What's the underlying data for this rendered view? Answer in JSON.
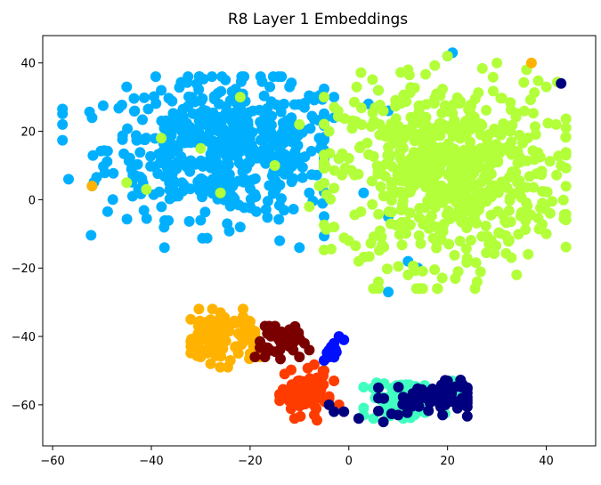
{
  "chart_data": {
    "type": "scatter",
    "title": "R8 Layer 1 Embeddings",
    "xlabel": "",
    "ylabel": "",
    "xlim": [
      -62,
      50
    ],
    "ylim": [
      -72,
      48
    ],
    "xticks": [
      -60,
      -40,
      -20,
      0,
      20,
      40
    ],
    "yticks": [
      -60,
      -40,
      -20,
      0,
      20,
      40
    ],
    "grid": false,
    "legend": "none",
    "series": [
      {
        "color": "#00b0ff",
        "cluster": {
          "cx": -25,
          "cy": 15,
          "sx": 12,
          "sy": 10,
          "n": 520,
          "xlim": [
            -58,
            -5
          ],
          "ylim": [
            -14,
            36
          ]
        },
        "points": [
          [
            -58,
            22
          ],
          [
            -52,
            24
          ],
          [
            -45,
            33
          ],
          [
            -38,
            32
          ],
          [
            -25,
            35
          ],
          [
            -16,
            33
          ],
          [
            -12,
            33
          ],
          [
            -9,
            27
          ],
          [
            -6,
            18
          ],
          [
            -5,
            10
          ],
          [
            -14,
            -12
          ],
          [
            -22,
            -8
          ],
          [
            -30,
            -6
          ],
          [
            -10,
            -14
          ],
          [
            -20,
            -2
          ],
          [
            -3,
            30
          ],
          [
            4,
            28
          ],
          [
            8,
            26
          ],
          [
            -2,
            12
          ],
          [
            3,
            2
          ],
          [
            8,
            -5
          ],
          [
            12,
            -18
          ],
          [
            14,
            -20
          ],
          [
            20,
            42
          ],
          [
            21,
            43
          ],
          [
            8,
            -27
          ],
          [
            -52,
            4
          ],
          [
            -8,
            2
          ],
          [
            -3,
            24
          ],
          [
            1,
            22
          ],
          [
            -12,
            10
          ],
          [
            6,
            32
          ]
        ]
      },
      {
        "color": "#b2ff3a",
        "cluster": {
          "cx": 20,
          "cy": 8,
          "sx": 11,
          "sy": 13,
          "n": 650,
          "xlim": [
            -5,
            44
          ],
          "ylim": [
            -26,
            41
          ]
        },
        "points": [
          [
            -2,
            12
          ],
          [
            -4,
            20
          ],
          [
            -6,
            4
          ],
          [
            -8,
            -2
          ],
          [
            -3,
            -8
          ],
          [
            0,
            -12
          ],
          [
            2,
            -18
          ],
          [
            6,
            -24
          ],
          [
            12,
            -22
          ],
          [
            18,
            -26
          ],
          [
            26,
            -24
          ],
          [
            34,
            -22
          ],
          [
            40,
            -10
          ],
          [
            43,
            10
          ],
          [
            42,
            22
          ],
          [
            40,
            33
          ],
          [
            30,
            40
          ],
          [
            20,
            42
          ],
          [
            12,
            38
          ],
          [
            6,
            32
          ],
          [
            36,
            38
          ],
          [
            -10,
            22
          ],
          [
            -5,
            30
          ],
          [
            -38,
            18
          ],
          [
            -26,
            2
          ],
          [
            -30,
            15
          ],
          [
            -15,
            10
          ],
          [
            -45,
            5
          ],
          [
            -41,
            3
          ],
          [
            -22,
            30
          ]
        ]
      },
      {
        "color": "#ffb300",
        "cluster": {
          "cx": -26,
          "cy": -40,
          "sx": 4,
          "sy": 4,
          "n": 90,
          "xlim": [
            -32,
            -19
          ],
          "ylim": [
            -49,
            -32
          ]
        },
        "points": [
          [
            -32,
            -35
          ],
          [
            -30,
            -46
          ],
          [
            -28,
            -48
          ],
          [
            -24,
            -47
          ],
          [
            -19,
            -44
          ],
          [
            -21,
            -36
          ],
          [
            -26,
            -33
          ],
          [
            -52,
            4
          ],
          [
            37,
            40
          ],
          [
            -18,
            -46
          ],
          [
            -20,
            -45
          ]
        ]
      },
      {
        "color": "#ff3c00",
        "cluster": {
          "cx": -9,
          "cy": -57,
          "sx": 2.3,
          "sy": 3,
          "n": 90,
          "xlim": [
            -14,
            -4
          ],
          "ylim": [
            -65,
            -48
          ]
        },
        "points": [
          [
            -13,
            -51
          ],
          [
            -11,
            -64
          ],
          [
            -7,
            -63
          ],
          [
            -5,
            -58
          ],
          [
            -5,
            -50
          ],
          [
            -2,
            -60
          ],
          [
            -3,
            -53
          ]
        ]
      },
      {
        "color": "#7a0000",
        "cluster": {
          "cx": -14,
          "cy": -41,
          "sx": 2,
          "sy": 2.5,
          "n": 35,
          "xlim": [
            -18,
            -9
          ],
          "ylim": [
            -47,
            -37
          ]
        },
        "points": [
          [
            -17,
            -46
          ],
          [
            -16,
            -38
          ],
          [
            -12,
            -38
          ],
          [
            -9,
            -42
          ],
          [
            -10,
            -46
          ],
          [
            -8,
            -44
          ],
          [
            -19,
            -46
          ]
        ]
      },
      {
        "color": "#40ffc0",
        "cluster": {
          "cx": 12,
          "cy": -58,
          "sx": 4,
          "sy": 2.5,
          "n": 90,
          "xlim": [
            3,
            22
          ],
          "ylim": [
            -65,
            -52
          ]
        },
        "points": [
          [
            3,
            -63
          ],
          [
            5,
            -64
          ],
          [
            8,
            -63
          ],
          [
            11,
            -64
          ],
          [
            14,
            -62
          ],
          [
            18,
            -56
          ],
          [
            20,
            -55
          ],
          [
            21,
            -53
          ],
          [
            22,
            -57
          ],
          [
            9,
            -55
          ]
        ]
      },
      {
        "color": "#00007f",
        "cluster": {
          "cx": 16,
          "cy": -58,
          "sx": 5,
          "sy": 2.5,
          "n": 55,
          "xlim": [
            6,
            24
          ],
          "ylim": [
            -66,
            -52
          ]
        },
        "points": [
          [
            6,
            -55
          ],
          [
            7,
            -65
          ],
          [
            10,
            -63
          ],
          [
            13,
            -60
          ],
          [
            19,
            -63
          ],
          [
            22,
            -61
          ],
          [
            23,
            -54
          ],
          [
            20,
            -53
          ],
          [
            -3,
            -62
          ],
          [
            -1,
            -62
          ],
          [
            43,
            34
          ],
          [
            -4,
            -60
          ],
          [
            2,
            -64
          ],
          [
            15,
            -57
          ]
        ]
      },
      {
        "color": "#0010ff",
        "cluster": {
          "cx": -4,
          "cy": -45,
          "sx": 0.8,
          "sy": 1.2,
          "n": 6,
          "xlim": [
            -5,
            -2
          ],
          "ylim": [
            -47,
            -43
          ]
        },
        "points": [
          [
            -5,
            -47
          ],
          [
            -4,
            -44
          ],
          [
            -3,
            -42
          ],
          [
            -2,
            -40
          ],
          [
            -1,
            -41
          ]
        ]
      }
    ]
  }
}
